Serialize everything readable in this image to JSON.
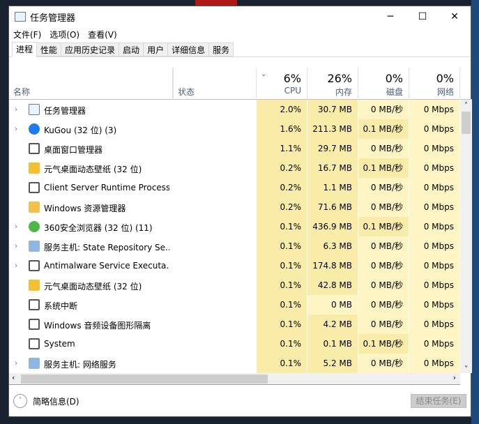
{
  "window": {
    "title": "任务管理器",
    "minimize": "─",
    "maximize": "☐",
    "close": "✕"
  },
  "menu": [
    "文件(F)",
    "选项(O)",
    "查看(V)"
  ],
  "tabs": [
    "进程",
    "性能",
    "应用历史记录",
    "启动",
    "用户",
    "详细信息",
    "服务"
  ],
  "header": {
    "name": "名称",
    "status": "状态",
    "cpu": {
      "pct": "6%",
      "label": "CPU"
    },
    "mem": {
      "pct": "26%",
      "label": "内存"
    },
    "disk": {
      "pct": "0%",
      "label": "磁盘"
    },
    "net": {
      "pct": "0%",
      "label": "网络"
    }
  },
  "rows": [
    {
      "name": "任务管理器",
      "expand": true,
      "icon": "task-manager-icon",
      "cpu": "2.0%",
      "mem": "30.7 MB",
      "disk": "0 MB/秒",
      "net": "0 Mbps"
    },
    {
      "name": "KuGou (32 位) (3)",
      "expand": true,
      "icon": "kugou-icon",
      "cpu": "1.6%",
      "mem": "211.3 MB",
      "disk": "0.1 MB/秒",
      "net": "0 Mbps"
    },
    {
      "name": "桌面窗口管理器",
      "expand": false,
      "icon": "window-icon",
      "cpu": "1.1%",
      "mem": "29.7 MB",
      "disk": "0 MB/秒",
      "net": "0 Mbps"
    },
    {
      "name": "元气桌面动态壁纸 (32 位)",
      "expand": false,
      "icon": "yuanqi-icon",
      "cpu": "0.2%",
      "mem": "16.7 MB",
      "disk": "0.1 MB/秒",
      "net": "0 Mbps"
    },
    {
      "name": "Client Server Runtime Process",
      "expand": false,
      "icon": "window-icon",
      "cpu": "0.2%",
      "mem": "1.1 MB",
      "disk": "0 MB/秒",
      "net": "0 Mbps"
    },
    {
      "name": "Windows 资源管理器",
      "expand": false,
      "icon": "folder-icon",
      "cpu": "0.2%",
      "mem": "71.6 MB",
      "disk": "0 MB/秒",
      "net": "0 Mbps"
    },
    {
      "name": "360安全浏览器 (32 位) (11)",
      "expand": true,
      "icon": "360-browser-icon",
      "cpu": "0.1%",
      "mem": "436.9 MB",
      "disk": "0.1 MB/秒",
      "net": "0 Mbps"
    },
    {
      "name": "服务主机: State Repository Se...",
      "expand": true,
      "icon": "gear-icon",
      "cpu": "0.1%",
      "mem": "6.3 MB",
      "disk": "0 MB/秒",
      "net": "0 Mbps"
    },
    {
      "name": "Antimalware Service Executa...",
      "expand": true,
      "icon": "window-icon",
      "cpu": "0.1%",
      "mem": "174.8 MB",
      "disk": "0 MB/秒",
      "net": "0 Mbps"
    },
    {
      "name": "元气桌面动态壁纸 (32 位)",
      "expand": false,
      "icon": "yuanqi-icon",
      "cpu": "0.1%",
      "mem": "42.8 MB",
      "disk": "0 MB/秒",
      "net": "0 Mbps"
    },
    {
      "name": "系统中断",
      "expand": false,
      "icon": "window-icon",
      "cpu": "0.1%",
      "mem": "0 MB",
      "disk": "0 MB/秒",
      "net": "0 Mbps"
    },
    {
      "name": "Windows 音频设备图形隔离",
      "expand": false,
      "icon": "window-icon",
      "cpu": "0.1%",
      "mem": "4.2 MB",
      "disk": "0 MB/秒",
      "net": "0 Mbps"
    },
    {
      "name": "System",
      "expand": false,
      "icon": "window-icon",
      "cpu": "0.1%",
      "mem": "0.1 MB",
      "disk": "0.1 MB/秒",
      "net": "0 Mbps"
    },
    {
      "name": "服务主机: 网络服务",
      "expand": true,
      "icon": "gear-icon",
      "cpu": "0.1%",
      "mem": "5.2 MB",
      "disk": "0 MB/秒",
      "net": "0 Mbps"
    }
  ],
  "footer": {
    "fewer_details": "简略信息(D)",
    "end_task": "结束任务(E)"
  },
  "colors": {
    "heat_high": "#f9eca8",
    "heat_low": "#fff4c4"
  }
}
